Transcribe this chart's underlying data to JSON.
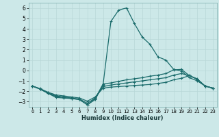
{
  "xlabel": "Humidex (Indice chaleur)",
  "xlim": [
    -0.5,
    23.5
  ],
  "ylim": [
    -3.5,
    6.5
  ],
  "xticks": [
    0,
    1,
    2,
    3,
    4,
    5,
    6,
    7,
    8,
    9,
    10,
    11,
    12,
    13,
    14,
    15,
    16,
    17,
    18,
    19,
    20,
    21,
    22,
    23
  ],
  "yticks": [
    -3,
    -2,
    -1,
    0,
    1,
    2,
    3,
    4,
    5,
    6
  ],
  "background_color": "#cce8e8",
  "line_color": "#1a6b6b",
  "grid_color": "#b8d8d8",
  "line1": {
    "x": [
      0,
      1,
      2,
      3,
      4,
      5,
      6,
      7,
      8,
      9,
      10,
      11,
      12,
      13,
      14,
      15,
      16,
      17,
      18,
      19,
      20,
      21,
      22,
      23
    ],
    "y": [
      -1.5,
      -1.8,
      -2.2,
      -2.5,
      -2.6,
      -2.7,
      -2.8,
      -3.3,
      -2.8,
      -1.4,
      4.7,
      5.8,
      6.0,
      4.5,
      3.2,
      2.5,
      1.3,
      1.0,
      0.1,
      -0.05,
      -0.7,
      -1.0,
      -1.5,
      -1.7
    ]
  },
  "line2": {
    "x": [
      0,
      1,
      2,
      3,
      4,
      5,
      6,
      7,
      8,
      9,
      10,
      11,
      12,
      13,
      14,
      15,
      16,
      17,
      18,
      19,
      20,
      21,
      22,
      23
    ],
    "y": [
      -1.5,
      -1.8,
      -2.2,
      -2.6,
      -2.65,
      -2.7,
      -2.8,
      -3.3,
      -2.7,
      -1.3,
      -1.2,
      -1.05,
      -0.9,
      -0.8,
      -0.7,
      -0.55,
      -0.45,
      -0.3,
      0.05,
      0.1,
      -0.5,
      -0.8,
      -1.5,
      -1.7
    ]
  },
  "line3": {
    "x": [
      0,
      1,
      2,
      3,
      4,
      5,
      6,
      7,
      8,
      9,
      10,
      11,
      12,
      13,
      14,
      15,
      16,
      17,
      18,
      19,
      20,
      21,
      22,
      23
    ],
    "y": [
      -1.5,
      -1.8,
      -2.15,
      -2.45,
      -2.55,
      -2.65,
      -2.75,
      -3.15,
      -2.65,
      -1.55,
      -1.4,
      -1.3,
      -1.2,
      -1.1,
      -1.0,
      -0.9,
      -0.8,
      -0.7,
      -0.45,
      -0.3,
      -0.5,
      -0.85,
      -1.5,
      -1.7
    ]
  },
  "line4": {
    "x": [
      0,
      1,
      2,
      3,
      4,
      5,
      6,
      7,
      8,
      9,
      10,
      11,
      12,
      13,
      14,
      15,
      16,
      17,
      18,
      19,
      20,
      21,
      22,
      23
    ],
    "y": [
      -1.5,
      -1.75,
      -2.1,
      -2.35,
      -2.45,
      -2.55,
      -2.65,
      -2.95,
      -2.55,
      -1.7,
      -1.6,
      -1.55,
      -1.5,
      -1.45,
      -1.4,
      -1.35,
      -1.25,
      -1.15,
      -0.9,
      -0.75,
      -0.5,
      -0.85,
      -1.5,
      -1.7
    ]
  }
}
